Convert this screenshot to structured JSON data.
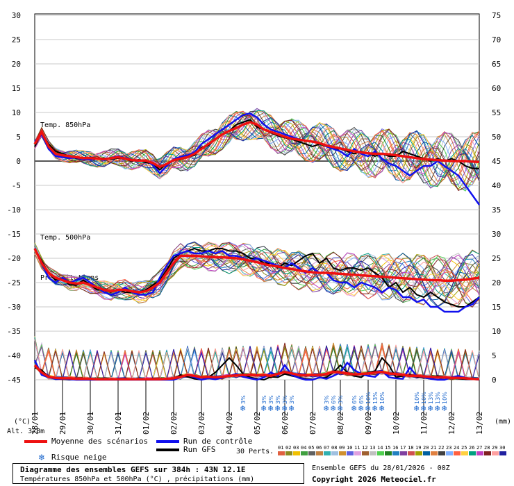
{
  "chart_data": {
    "type": "line",
    "title": "Diagramme des ensembles GEFS sur 384h : 43N 12.1E",
    "subtitle": "Températures 850hPa et 500hPa (°C) , précipitations (mm)",
    "left_axis_unit": "(°C)",
    "right_axis_unit": "(mm)",
    "left_ticks": [
      30,
      25,
      20,
      15,
      10,
      5,
      0,
      -5,
      -10,
      -15,
      -20,
      -25,
      -30,
      -35,
      -40,
      -45
    ],
    "right_ticks": [
      75,
      70,
      65,
      60,
      55,
      50,
      45,
      40,
      35,
      30,
      25,
      20,
      15,
      10,
      5,
      0
    ],
    "x_labels": [
      "29/01",
      "30/01",
      "31/01",
      "01/02",
      "02/02",
      "03/02",
      "04/02",
      "05/02",
      "06/02",
      "07/02",
      "08/02",
      "09/02",
      "10/02",
      "11/02",
      "12/02",
      "13/02"
    ],
    "x_first_label": "28/01",
    "altitude": "Alt. 378m",
    "panel_labels": {
      "t850": "Temp. 850hPa",
      "t500": "Temp. 500hPa",
      "precip": "Précipitations"
    },
    "x_hours": [
      0,
      6,
      12,
      18,
      24,
      30,
      36,
      42,
      48,
      54,
      60,
      66,
      72,
      78,
      84,
      90,
      96,
      102,
      108,
      114,
      120,
      126,
      132,
      138,
      144,
      150,
      156,
      162,
      168,
      174,
      180,
      186,
      192,
      198,
      204,
      210,
      216,
      222,
      228,
      234,
      240,
      246,
      252,
      258,
      264,
      270,
      276,
      282,
      288,
      294,
      300,
      306,
      312,
      318,
      324,
      330,
      336,
      342,
      348,
      354,
      360,
      366,
      372,
      378,
      384
    ],
    "mean_t850": [
      3.5,
      6,
      3,
      1.5,
      1.2,
      1,
      0.8,
      0.6,
      0.6,
      0.5,
      0.4,
      0.6,
      0.8,
      0.5,
      0.2,
      0.1,
      0.1,
      -0.4,
      -1.2,
      -0.6,
      0.2,
      0.5,
      0.8,
      1.5,
      2.5,
      3.5,
      4.5,
      5.5,
      6.2,
      6.8,
      7.5,
      8,
      7.5,
      6.5,
      6,
      5.5,
      5,
      4.6,
      4.4,
      4.2,
      4,
      3.7,
      3.2,
      2.9,
      2.6,
      2.3,
      2,
      1.8,
      1.6,
      1.5,
      1.5,
      1.4,
      1.2,
      1,
      0.8,
      0.6,
      0.4,
      0.3,
      0.2,
      0.1,
      0,
      0,
      0,
      -0.1,
      -0.2
    ],
    "control_t850": [
      4,
      5.5,
      2.5,
      1,
      0.8,
      0.6,
      0.7,
      0.4,
      0.3,
      0.5,
      0.2,
      0.7,
      1,
      0.6,
      0.3,
      0,
      0.2,
      -0.8,
      -2.5,
      -1,
      0.4,
      0.9,
      1.2,
      1.8,
      3.5,
      4.5,
      5.5,
      6.5,
      7.5,
      8.5,
      9.5,
      9.8,
      9,
      7.5,
      6.5,
      6,
      5.5,
      5,
      4.5,
      4.2,
      4,
      3.8,
      3,
      2.5,
      2,
      1,
      2.5,
      1.5,
      1,
      2,
      0.5,
      -0.5,
      -1,
      -2,
      -3,
      -2,
      -1,
      -1,
      0,
      -1,
      -2,
      -3,
      -5,
      -7,
      -9
    ],
    "gfs_t850": [
      3,
      6,
      3.5,
      2,
      1.5,
      1,
      0.5,
      0.4,
      0.8,
      0.5,
      0.6,
      0.4,
      0.6,
      0.4,
      0,
      0.3,
      -0.3,
      -0.5,
      -1.8,
      -0.5,
      0.2,
      0.3,
      0.8,
      1.2,
      2.8,
      3.2,
      4.5,
      5.5,
      6.2,
      7.5,
      8,
      8.5,
      7,
      6.5,
      5.8,
      5.2,
      4.8,
      4.5,
      4,
      3.5,
      3,
      3.5,
      3,
      2.5,
      2.5,
      2,
      1.5,
      2,
      1.5,
      1,
      1.5,
      1,
      1,
      2,
      1.5,
      1,
      0.5,
      0,
      0.5,
      0,
      0.5,
      0,
      -1,
      -1.5,
      -1.5
    ],
    "mean_t500": [
      -18,
      -21,
      -23,
      -24,
      -24.5,
      -25,
      -25.2,
      -25,
      -25.5,
      -26,
      -26.5,
      -26.8,
      -26.5,
      -26.5,
      -26.8,
      -27,
      -26.8,
      -26,
      -25,
      -23,
      -21,
      -19.5,
      -19.5,
      -19.5,
      -19.6,
      -19.7,
      -19.8,
      -19.8,
      -19.9,
      -20,
      -20.2,
      -20.5,
      -20.8,
      -21.2,
      -21.5,
      -21.7,
      -22,
      -22.2,
      -22.5,
      -22.7,
      -22.9,
      -23,
      -23,
      -23.1,
      -23.2,
      -23.3,
      -23.4,
      -23.5,
      -23.6,
      -23.7,
      -23.8,
      -23.9,
      -24,
      -24.1,
      -24.2,
      -24.3,
      -24.4,
      -24.5,
      -24.5,
      -24.6,
      -24.6,
      -24.5,
      -24.4,
      -24.2,
      -24
    ],
    "control_t500": [
      -18,
      -21,
      -24,
      -25,
      -24,
      -25,
      -24.5,
      -24,
      -25,
      -26,
      -27,
      -27.5,
      -27,
      -26,
      -27,
      -27.5,
      -27.5,
      -27,
      -24,
      -21.5,
      -19.5,
      -19,
      -18.5,
      -19,
      -19,
      -18.5,
      -19,
      -18.5,
      -19.5,
      -19.5,
      -20,
      -20.5,
      -20,
      -20.5,
      -21,
      -21.5,
      -22,
      -21,
      -22,
      -23,
      -22,
      -23,
      -23,
      -24.5,
      -25,
      -25,
      -26,
      -25,
      -25.5,
      -26,
      -27,
      -26,
      -26.5,
      -28,
      -28,
      -29,
      -28.5,
      -30,
      -30,
      -31,
      -31,
      -31,
      -30,
      -29.5,
      -28
    ],
    "gfs_t500": [
      -18,
      -20.5,
      -23,
      -24.5,
      -24,
      -25.5,
      -25.5,
      -24.5,
      -25.5,
      -26.5,
      -26.5,
      -27,
      -26.5,
      -27,
      -27,
      -27,
      -26.5,
      -25.5,
      -24.5,
      -22.5,
      -20,
      -19,
      -18.5,
      -18,
      -18.5,
      -18.5,
      -18,
      -18,
      -18.5,
      -18.5,
      -19,
      -20,
      -20,
      -21,
      -21,
      -22,
      -21,
      -21.5,
      -20.5,
      -19.5,
      -19,
      -21,
      -20,
      -22,
      -22.5,
      -22,
      -22,
      -22.5,
      -22,
      -23,
      -24,
      -26,
      -25,
      -27,
      -26,
      -27.5,
      -28,
      -27,
      -28,
      -29,
      -29.5,
      -30,
      -30,
      -29,
      -28
    ],
    "mean_precip": [
      3,
      1.5,
      0.6,
      0.4,
      0.3,
      0.3,
      0.2,
      0.2,
      0.2,
      0.1,
      0.1,
      0.1,
      0.1,
      0.1,
      0.1,
      0.1,
      0.1,
      0.1,
      0.1,
      0.2,
      0.3,
      0.6,
      1,
      0.8,
      0.5,
      0.6,
      0.5,
      0.6,
      0.8,
      0.9,
      1,
      1,
      0.9,
      1,
      0.8,
      1.2,
      1.6,
      1.3,
      1,
      0.9,
      1,
      1,
      1.2,
      1.6,
      1.5,
      1.3,
      1.1,
      1.2,
      1.3,
      1.5,
      1.6,
      1.3,
      1.2,
      1,
      0.8,
      0.8,
      0.7,
      0.6,
      0.5,
      0.5,
      0.4,
      0.4,
      0.3,
      0.2,
      0.1
    ],
    "control_precip": [
      4,
      1,
      0.5,
      0.2,
      0.2,
      0.1,
      0,
      0,
      0,
      0,
      0,
      0,
      0,
      0,
      0,
      0,
      0,
      0,
      0,
      0,
      0,
      0.5,
      1,
      0.5,
      0,
      0.3,
      0.1,
      0.4,
      0.8,
      1.2,
      0.6,
      0.3,
      0,
      0.5,
      1.5,
      0.8,
      3,
      1,
      0.4,
      0,
      0,
      0.5,
      0.2,
      0.8,
      1.5,
      3.5,
      2,
      1.2,
      0.8,
      0.6,
      1.8,
      0.5,
      0.3,
      0.2,
      2.5,
      0.8,
      0.5,
      0.2,
      0,
      0,
      0.5,
      0.8,
      0.4,
      0.2,
      0
    ],
    "gfs_precip": [
      2.5,
      2,
      0.5,
      0.2,
      0.1,
      0,
      0.1,
      0,
      0,
      0,
      0,
      0,
      0,
      0,
      0,
      0,
      0,
      0,
      0,
      0,
      0.2,
      1,
      0.6,
      0.2,
      0,
      0.5,
      1.5,
      3,
      4.5,
      3,
      1.2,
      0.5,
      0.2,
      0,
      0.6,
      0.5,
      1.2,
      0.8,
      0.5,
      0.2,
      0.1,
      0.4,
      0.5,
      1.5,
      3,
      1.5,
      0.8,
      0.5,
      1.5,
      1.8,
      4.5,
      3,
      0.5,
      0.8,
      1,
      0.6,
      0.4,
      0.2,
      0.8,
      0.5,
      0.4,
      0.2,
      0.1,
      0.1,
      0
    ],
    "snow_risk": [
      {
        "hour": 180,
        "pct": "3%"
      },
      {
        "hour": 198,
        "pct": "3%"
      },
      {
        "hour": 204,
        "pct": "3%"
      },
      {
        "hour": 210,
        "pct": "3%"
      },
      {
        "hour": 216,
        "pct": "3%"
      },
      {
        "hour": 222,
        "pct": "3%"
      },
      {
        "hour": 252,
        "pct": "3%"
      },
      {
        "hour": 258,
        "pct": "6%"
      },
      {
        "hour": 264,
        "pct": "3%"
      },
      {
        "hour": 276,
        "pct": "6%"
      },
      {
        "hour": 282,
        "pct": "6%"
      },
      {
        "hour": 288,
        "pct": "10%"
      },
      {
        "hour": 294,
        "pct": "13%"
      },
      {
        "hour": 300,
        "pct": "10%"
      },
      {
        "hour": 330,
        "pct": "10%"
      },
      {
        "hour": 336,
        "pct": "10%"
      },
      {
        "hour": 342,
        "pct": "13%"
      },
      {
        "hour": 348,
        "pct": "13%"
      },
      {
        "hour": 354,
        "pct": "10%"
      }
    ],
    "perturbation_labels": [
      "01",
      "02",
      "03",
      "04",
      "05",
      "06",
      "07",
      "08",
      "09",
      "10",
      "11",
      "12",
      "13",
      "14",
      "15",
      "16",
      "17",
      "18",
      "19",
      "20",
      "21",
      "22",
      "23",
      "24",
      "25",
      "26",
      "27",
      "28",
      "29",
      "30"
    ],
    "perturbation_colors": [
      "#e06040",
      "#8a8a20",
      "#f0c000",
      "#40a040",
      "#606060",
      "#c08040",
      "#30b0b0",
      "#a0c0e0",
      "#d09030",
      "#6060e0",
      "#e0a0e0",
      "#a06030",
      "#c0c0c0",
      "#50d050",
      "#208020",
      "#2080c0",
      "#8040a0",
      "#d05050",
      "#a0a000",
      "#0060a0",
      "#e08040",
      "#404040",
      "#80b0ff",
      "#ff6040",
      "#ffd040",
      "#00a080",
      "#c040c0",
      "#802020",
      "#ffa0a0",
      "#2020a0"
    ]
  },
  "legend": {
    "mean": "Moyenne des scénarios",
    "control": "Run de contrôle",
    "gfs": "Run GFS",
    "snow": "Risque neige",
    "perts": "30 Perts."
  },
  "footer": {
    "ensemble": "Ensemble GEFS du 28/01/2026 - 00Z",
    "copyright": "Copyright 2026 Meteociel.fr"
  },
  "colors": {
    "mean": "#ee1111",
    "control": "#1010ee",
    "gfs": "#000000"
  }
}
